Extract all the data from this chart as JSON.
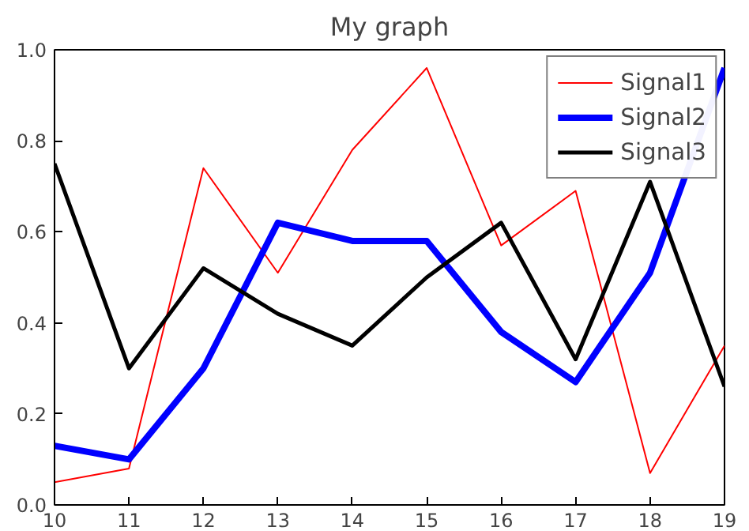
{
  "chart_data": {
    "type": "line",
    "title": "My graph",
    "x": [
      10,
      11,
      12,
      13,
      14,
      15,
      16,
      17,
      18,
      19
    ],
    "series": [
      {
        "name": "Signal1",
        "color": "#ff0000",
        "values": [
          0.05,
          0.08,
          0.74,
          0.51,
          0.78,
          0.96,
          0.57,
          0.69,
          0.07,
          0.35
        ]
      },
      {
        "name": "Signal2",
        "color": "#0000ff",
        "values": [
          0.13,
          0.1,
          0.3,
          0.62,
          0.58,
          0.58,
          0.38,
          0.27,
          0.51,
          0.96
        ]
      },
      {
        "name": "Signal3",
        "color": "#000000",
        "values": [
          0.75,
          0.3,
          0.52,
          0.42,
          0.35,
          0.5,
          0.62,
          0.32,
          0.71,
          0.26
        ]
      }
    ],
    "xlim": [
      10,
      19
    ],
    "ylim": [
      0,
      1
    ],
    "xticks": [
      10,
      11,
      12,
      13,
      14,
      15,
      16,
      17,
      18,
      19
    ],
    "yticks": [
      {
        "value": 0,
        "label": "0.0"
      },
      0.2,
      0.4,
      0.6,
      0.8,
      {
        "value": 1,
        "label": "1.0"
      }
    ],
    "grid": false,
    "legend": "top right",
    "marker": "none",
    "line_style": "solid"
  }
}
